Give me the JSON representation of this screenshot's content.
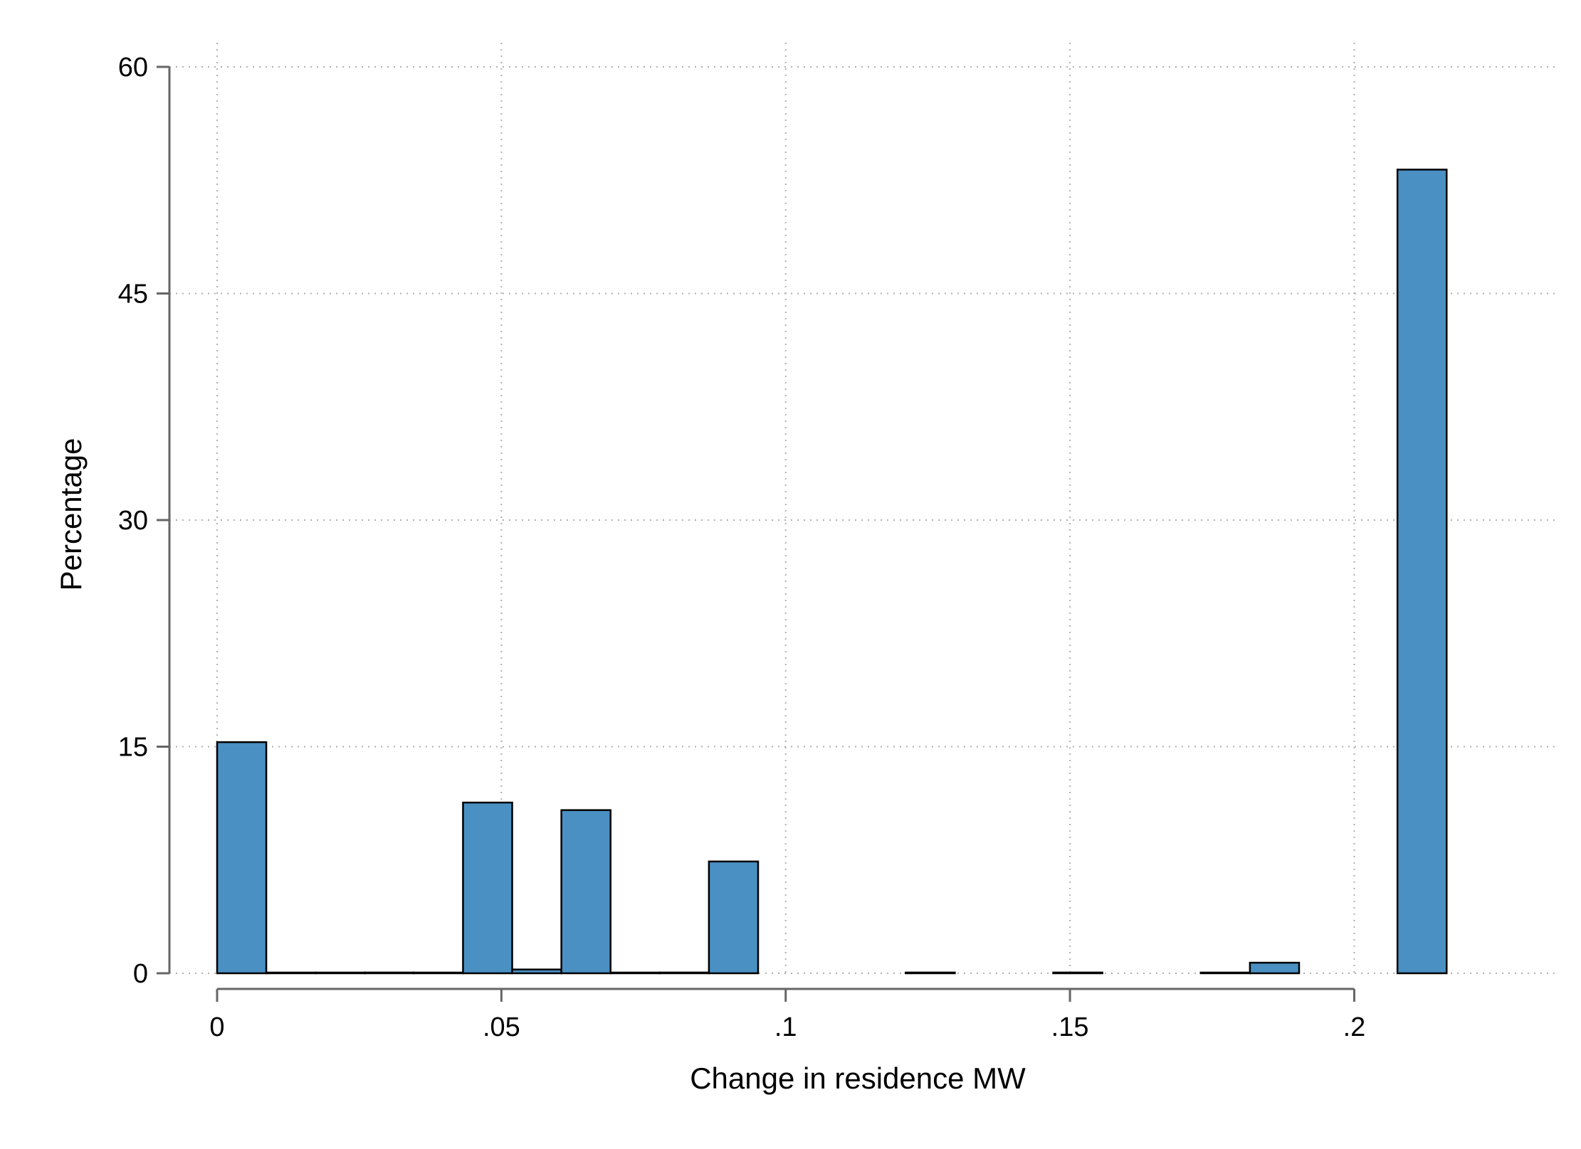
{
  "chart_data": {
    "type": "bar",
    "title": "",
    "xlabel": "Change in residence MW",
    "ylabel": "Percentage",
    "xlim": [
      0,
      0.236
    ],
    "ylim": [
      0,
      60
    ],
    "xticks": [
      0,
      0.05,
      0.1,
      0.15,
      0.2
    ],
    "xtick_labels": [
      "0",
      ".05",
      ".1",
      ".15",
      ".2"
    ],
    "yticks": [
      0,
      15,
      30,
      45,
      60
    ],
    "ytick_labels": [
      "0",
      "15",
      "30",
      "45",
      "60"
    ],
    "grid": true,
    "legend": "none",
    "bin_width": 0.00865,
    "bars": [
      {
        "x0": 0.0,
        "x1": 0.00865,
        "value": 15.3
      },
      {
        "x0": 0.00865,
        "x1": 0.0173,
        "value": 0.03
      },
      {
        "x0": 0.0173,
        "x1": 0.02595,
        "value": 0.03
      },
      {
        "x0": 0.02595,
        "x1": 0.0346,
        "value": 0.05
      },
      {
        "x0": 0.0346,
        "x1": 0.04325,
        "value": 0.03
      },
      {
        "x0": 0.04325,
        "x1": 0.0519,
        "value": 11.3
      },
      {
        "x0": 0.0519,
        "x1": 0.06055,
        "value": 0.25
      },
      {
        "x0": 0.06055,
        "x1": 0.0692,
        "value": 10.8
      },
      {
        "x0": 0.0692,
        "x1": 0.07785,
        "value": 0.03
      },
      {
        "x0": 0.07785,
        "x1": 0.0865,
        "value": 0.05
      },
      {
        "x0": 0.0865,
        "x1": 0.09515,
        "value": 7.4
      },
      {
        "x0": 0.1211,
        "x1": 0.12975,
        "value": 0.05
      },
      {
        "x0": 0.14705,
        "x1": 0.1557,
        "value": 0.05
      },
      {
        "x0": 0.173,
        "x1": 0.18165,
        "value": 0.03
      },
      {
        "x0": 0.18165,
        "x1": 0.1903,
        "value": 0.7
      },
      {
        "x0": 0.2076,
        "x1": 0.21625,
        "value": 53.2
      }
    ]
  },
  "colors": {
    "bar_fill": "#4a90c2",
    "bar_edge": "#000000",
    "axis": "#666666",
    "grid": "#b0b0b0"
  }
}
